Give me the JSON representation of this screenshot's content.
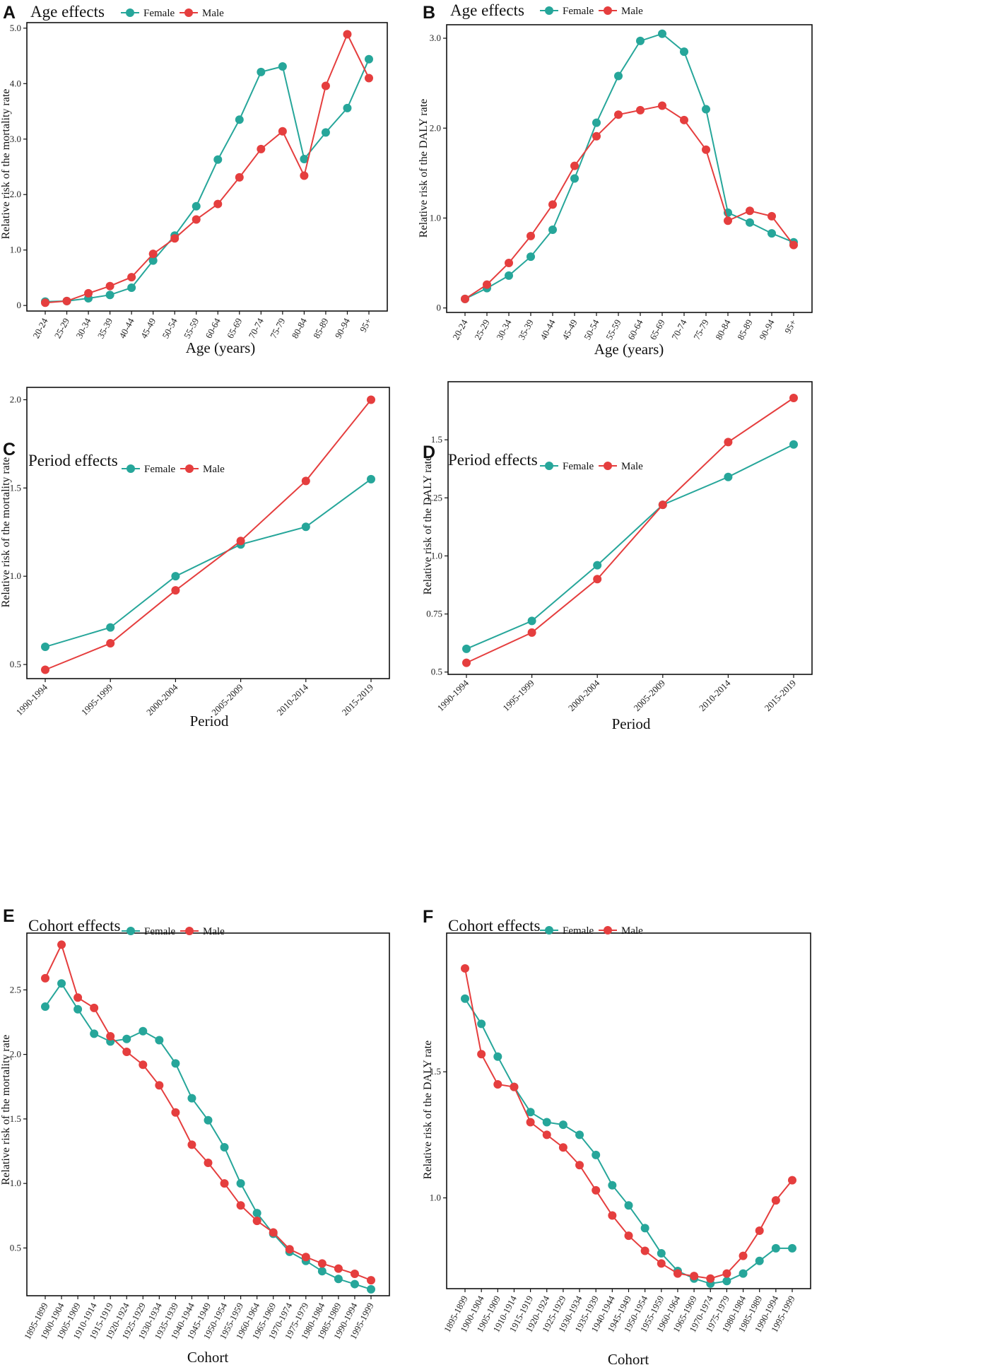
{
  "colors": {
    "female": "#26a69a",
    "male": "#e53e3e"
  },
  "chart_data": [
    {
      "panel": "A",
      "type": "line",
      "title": "Age effects",
      "xlabel": "Age (years)",
      "ylabel": "Relative risk  of the mortality rate",
      "categories": [
        "20-24",
        "25-29",
        "30-34",
        "35-39",
        "40-44",
        "45-49",
        "50-54",
        "55-59",
        "60-64",
        "65-69",
        "70-74",
        "75-79",
        "80-84",
        "85-89",
        "90-94",
        "95+"
      ],
      "ylim": [
        -0.1,
        5.1
      ],
      "yticks": [
        {
          "v": 0,
          "label": "0"
        },
        {
          "v": 1,
          "label": "1.0"
        },
        {
          "v": 2,
          "label": "2.0"
        },
        {
          "v": 3,
          "label": "3.0"
        },
        {
          "v": 4,
          "label": "4.0"
        },
        {
          "v": 5,
          "label": "5.0"
        }
      ],
      "series": [
        {
          "name": "Female",
          "values": [
            0.07,
            0.08,
            0.13,
            0.19,
            0.32,
            0.81,
            1.26,
            1.79,
            2.63,
            3.35,
            4.21,
            4.31,
            2.64,
            3.12,
            3.56,
            4.44
          ]
        },
        {
          "name": "Male",
          "values": [
            0.05,
            0.08,
            0.22,
            0.35,
            0.51,
            0.93,
            1.21,
            1.55,
            1.83,
            2.31,
            2.82,
            3.14,
            2.34,
            3.96,
            4.89,
            4.1
          ]
        }
      ]
    },
    {
      "panel": "B",
      "type": "line",
      "title": "Age effects",
      "xlabel": "Age (years)",
      "ylabel": "Relative risk  of the DALY rate",
      "categories": [
        "20-24",
        "25-29",
        "30-34",
        "35-39",
        "40-44",
        "45-49",
        "50-54",
        "55-59",
        "60-64",
        "65-69",
        "70-74",
        "75-79",
        "80-84",
        "85-89",
        "90-94",
        "95+"
      ],
      "ylim": [
        -0.05,
        3.15
      ],
      "yticks": [
        {
          "v": 0,
          "label": "0"
        },
        {
          "v": 1,
          "label": "1.0"
        },
        {
          "v": 2,
          "label": "2.0"
        },
        {
          "v": 3,
          "label": "3.0"
        }
      ],
      "series": [
        {
          "name": "Female",
          "values": [
            0.1,
            0.22,
            0.36,
            0.57,
            0.87,
            1.44,
            2.06,
            2.58,
            2.97,
            3.05,
            2.85,
            2.21,
            1.06,
            0.95,
            0.83,
            0.73
          ]
        },
        {
          "name": "Male",
          "values": [
            0.1,
            0.26,
            0.5,
            0.8,
            1.15,
            1.58,
            1.91,
            2.15,
            2.2,
            2.25,
            2.09,
            1.76,
            0.97,
            1.08,
            1.02,
            0.7
          ]
        }
      ]
    },
    {
      "panel": "C",
      "type": "line",
      "title": "Period effects",
      "xlabel": "Period",
      "ylabel": "Relative risk  of the mortality rate",
      "categories": [
        "1990-1994",
        "1995-1999",
        "2000-2004",
        "2005-2009",
        "2010-2014",
        "2015-2019"
      ],
      "ylim": [
        0.42,
        2.07
      ],
      "yticks": [
        {
          "v": 0.5,
          "label": "0.5"
        },
        {
          "v": 1.0,
          "label": "1.0"
        },
        {
          "v": 1.5,
          "label": "1.5"
        },
        {
          "v": 2.0,
          "label": "2.0"
        }
      ],
      "series": [
        {
          "name": "Female",
          "values": [
            0.6,
            0.71,
            1.0,
            1.18,
            1.28,
            1.55
          ]
        },
        {
          "name": "Male",
          "values": [
            0.47,
            0.62,
            0.92,
            1.2,
            1.54,
            2.0
          ]
        }
      ]
    },
    {
      "panel": "D",
      "type": "line",
      "title": "Period effects",
      "xlabel": "Period",
      "ylabel": "Relative risk  of the DALY rate",
      "categories": [
        "1990-1994",
        "1995-1999",
        "2000-2004",
        "2005-2009",
        "2010-2014",
        "2015-2019"
      ],
      "ylim": [
        0.49,
        1.75
      ],
      "yticks": [
        {
          "v": 0.5,
          "label": "0.5"
        },
        {
          "v": 0.75,
          "label": "0.75"
        },
        {
          "v": 1.0,
          "label": "1.0"
        },
        {
          "v": 1.25,
          "label": "1.25"
        },
        {
          "v": 1.5,
          "label": "1.5"
        }
      ],
      "series": [
        {
          "name": "Female",
          "values": [
            0.6,
            0.72,
            0.96,
            1.22,
            1.34,
            1.48
          ]
        },
        {
          "name": "Male",
          "values": [
            0.54,
            0.67,
            0.9,
            1.22,
            1.49,
            1.68
          ]
        }
      ]
    },
    {
      "panel": "E",
      "type": "line",
      "title": "Cohort effects",
      "xlabel": "Cohort",
      "ylabel": "Relative risk  of the mortality rate",
      "categories": [
        "1895-1899",
        "1900-1904",
        "1905-1909",
        "1910-1914",
        "1915-1919",
        "1920-1924",
        "1925-1929",
        "1930-1934",
        "1935-1939",
        "1940-1944",
        "1945-1949",
        "1950-1954",
        "1955-1959",
        "1960-1964",
        "1965-1969",
        "1970-1974",
        "1975-1979",
        "1980-1984",
        "1985-1989",
        "1990-1994",
        "1995-1999"
      ],
      "ylim": [
        0.13,
        2.94
      ],
      "yticks": [
        {
          "v": 0.5,
          "label": "0.5"
        },
        {
          "v": 1.0,
          "label": "1.0"
        },
        {
          "v": 1.5,
          "label": "1.5"
        },
        {
          "v": 2.0,
          "label": "2.0"
        },
        {
          "v": 2.5,
          "label": "2.5"
        }
      ],
      "series": [
        {
          "name": "Female",
          "values": [
            2.37,
            2.55,
            2.35,
            2.16,
            2.1,
            2.12,
            2.18,
            2.11,
            1.93,
            1.66,
            1.49,
            1.28,
            1.0,
            0.77,
            0.61,
            0.47,
            0.4,
            0.32,
            0.26,
            0.22,
            0.18
          ]
        },
        {
          "name": "Male",
          "values": [
            2.59,
            2.85,
            2.44,
            2.36,
            2.14,
            2.02,
            1.92,
            1.76,
            1.55,
            1.3,
            1.16,
            1.0,
            0.83,
            0.71,
            0.62,
            0.49,
            0.43,
            0.38,
            0.34,
            0.3,
            0.25
          ]
        }
      ]
    },
    {
      "panel": "F",
      "type": "line",
      "title": "Cohort effects",
      "xlabel": "Cohort",
      "ylabel": "Relative risk  of the DALY rate",
      "categories": [
        "1895-1899",
        "1900-1904",
        "1905-1909",
        "1910-1914",
        "1915-1919",
        "1920-1924",
        "1925-1929",
        "1930-1934",
        "1935-1939",
        "1940-1944",
        "1945-1949",
        "1950-1954",
        "1955-1959",
        "1960-1964",
        "1965-1969",
        "1970-1974",
        "1975-1979",
        "1980-1984",
        "1985-1989",
        "1990-1994",
        "1995-1999"
      ],
      "ylim": [
        0.64,
        2.05
      ],
      "yticks": [
        {
          "v": 1.0,
          "label": "1.0"
        },
        {
          "v": 1.5,
          "label": "1.5"
        }
      ],
      "series": [
        {
          "name": "Female",
          "values": [
            1.79,
            1.69,
            1.56,
            1.44,
            1.34,
            1.3,
            1.29,
            1.25,
            1.17,
            1.05,
            0.97,
            0.88,
            0.78,
            0.71,
            0.68,
            0.66,
            0.67,
            0.7,
            0.75,
            0.8,
            0.8
          ]
        },
        {
          "name": "Male",
          "values": [
            1.91,
            1.57,
            1.45,
            1.44,
            1.3,
            1.25,
            1.2,
            1.13,
            1.03,
            0.93,
            0.85,
            0.79,
            0.74,
            0.7,
            0.69,
            0.68,
            0.7,
            0.77,
            0.87,
            0.99,
            1.07
          ]
        }
      ]
    }
  ]
}
